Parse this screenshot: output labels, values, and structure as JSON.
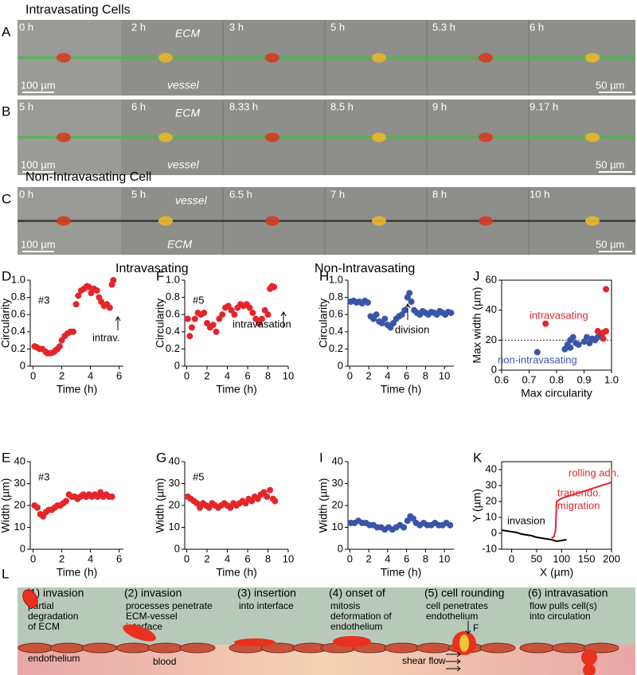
{
  "panels": [
    {
      "letter": "A",
      "heading": "Intravasating Cells",
      "times": [
        "0 h",
        "2 h",
        "3 h",
        "5 h",
        "5.3 h",
        "6 h"
      ],
      "upper": "ECM",
      "lower": "vessel",
      "scale_left": "100 µm",
      "scale_right": "50 µm"
    },
    {
      "letter": "B",
      "times": [
        "5 h",
        "6 h",
        "8.33 h",
        "8.5 h",
        "9 h",
        "9.17 h"
      ],
      "upper": "ECM",
      "lower": "vessel",
      "scale_left": "100 µm",
      "scale_right": "50 µm"
    },
    {
      "letter": "C",
      "heading": "Non-Intravasating Cell",
      "times": [
        "0 h",
        "5 h",
        "6.5 h",
        "7 h",
        "8 h",
        "10 h"
      ],
      "upper": "vessel",
      "lower": "ECM",
      "scale_left": "100 µm",
      "scale_right": "50 µm"
    }
  ],
  "column_headers": [
    "Intravasating",
    "Non-Intravasating"
  ],
  "chart_data": [
    {
      "type": "scatter",
      "label": "D",
      "xlabel": "Time (h)",
      "ylabel": "Circularity",
      "xlim": [
        -0.2,
        6.3
      ],
      "xticks": [
        0,
        2,
        4,
        6
      ],
      "ylim": [
        0,
        1
      ],
      "yticks": [
        0,
        0.2,
        0.4,
        0.6,
        0.8,
        {
          "value": 1,
          "label": "1.0"
        }
      ],
      "annotations": [
        {
          "text": "#3",
          "color": "#000"
        },
        {
          "text": "intrav.",
          "color": "#000"
        }
      ],
      "series": [
        {
          "color": "#e3262b",
          "x": [
            0.1,
            0.25,
            0.45,
            0.65,
            0.85,
            1.0,
            1.2,
            1.4,
            1.55,
            1.7,
            1.85,
            2.0,
            2.2,
            2.4,
            2.6,
            2.8,
            3.0,
            3.15,
            3.35,
            3.55,
            3.75,
            3.9,
            4.05,
            4.25,
            4.45,
            4.6,
            4.75,
            4.95,
            5.15,
            5.35,
            5.5,
            5.6
          ],
          "values": [
            0.23,
            0.22,
            0.2,
            0.2,
            0.17,
            0.15,
            0.15,
            0.16,
            0.18,
            0.2,
            0.23,
            0.3,
            0.35,
            0.38,
            0.4,
            0.4,
            0.72,
            0.82,
            0.88,
            0.9,
            0.93,
            0.92,
            0.85,
            0.9,
            0.88,
            0.8,
            0.75,
            0.7,
            0.72,
            0.68,
            0.95,
            1
          ]
        }
      ]
    },
    {
      "type": "scatter",
      "label": "F",
      "xlabel": "Time (h)",
      "ylabel": "Circularity",
      "xlim": [
        -0.2,
        10
      ],
      "xticks": [
        0,
        2,
        4,
        6,
        8,
        10
      ],
      "ylim": [
        0,
        1
      ],
      "yticks": [
        0,
        0.2,
        0.4,
        0.6,
        0.8,
        {
          "value": 1,
          "label": "1.0"
        }
      ],
      "annotations": [
        {
          "text": "#5",
          "color": "#000"
        },
        {
          "text": "intravasation",
          "color": "#000"
        }
      ],
      "series": [
        {
          "color": "#e3262b",
          "x": [
            0.1,
            0.3,
            0.5,
            0.8,
            1.1,
            1.4,
            1.7,
            2.0,
            2.3,
            2.6,
            2.9,
            3.2,
            3.5,
            3.8,
            4.1,
            4.4,
            4.7,
            5.0,
            5.3,
            5.6,
            5.9,
            6.2,
            6.5,
            6.8,
            7.1,
            7.4,
            7.7,
            8.0,
            8.2,
            8.4,
            8.6
          ],
          "values": [
            0.55,
            0.35,
            0.45,
            0.55,
            0.62,
            0.6,
            0.62,
            0.5,
            0.45,
            0.48,
            0.4,
            0.55,
            0.6,
            0.68,
            0.7,
            0.65,
            0.6,
            0.68,
            0.72,
            0.7,
            0.72,
            0.68,
            0.62,
            0.55,
            0.5,
            0.55,
            0.65,
            0.6,
            0.9,
            0.93,
            0.92
          ]
        }
      ]
    },
    {
      "type": "scatter",
      "label": "H",
      "xlabel": "Time (h)",
      "ylabel": "Circularity",
      "xlim": [
        -0.2,
        11
      ],
      "xticks": [
        0,
        2,
        4,
        6,
        8,
        10
      ],
      "ylim": [
        0,
        1
      ],
      "yticks": [
        0,
        0.2,
        0.4,
        0.6,
        0.8,
        {
          "value": 1,
          "label": "1.0"
        }
      ],
      "annotations": [
        {
          "text": "division",
          "color": "#000"
        }
      ],
      "series": [
        {
          "color": "#3a55a8",
          "x": [
            0.1,
            0.4,
            0.7,
            1.0,
            1.3,
            1.6,
            1.9,
            2.2,
            2.5,
            2.8,
            3.1,
            3.4,
            3.7,
            4.0,
            4.3,
            4.6,
            4.9,
            5.2,
            5.5,
            5.8,
            6.1,
            6.3,
            6.5,
            6.8,
            7.1,
            7.4,
            7.7,
            8.0,
            8.3,
            8.6,
            8.9,
            9.2,
            9.5,
            9.8,
            10.1,
            10.4,
            10.7
          ],
          "values": [
            0.75,
            0.76,
            0.74,
            0.75,
            0.73,
            0.76,
            0.74,
            0.58,
            0.55,
            0.6,
            0.52,
            0.5,
            0.55,
            0.48,
            0.45,
            0.5,
            0.55,
            0.58,
            0.6,
            0.65,
            0.8,
            0.85,
            0.75,
            0.65,
            0.62,
            0.6,
            0.64,
            0.62,
            0.6,
            0.63,
            0.62,
            0.6,
            0.64,
            0.62,
            0.6,
            0.63,
            0.62
          ]
        }
      ]
    },
    {
      "type": "scatter",
      "label": "J",
      "xlabel": "Max circularity",
      "ylabel": "Max width (µm)",
      "xlim": [
        0.6,
        1
      ],
      "xticks": [
        0.6,
        0.7,
        0.8,
        0.9,
        {
          "value": 1,
          "label": "1.0"
        }
      ],
      "ylim": [
        0,
        60
      ],
      "yticks": [
        0,
        20,
        40,
        60
      ],
      "reference_line": 20,
      "series": [
        {
          "name": "intravasating",
          "color": "#e3262b",
          "x": [
            0.76,
            0.95,
            0.96,
            0.97,
            0.97,
            0.98,
            0.98
          ],
          "values": [
            31,
            26,
            23,
            21,
            25,
            54,
            26
          ]
        },
        {
          "name": "non-intravasating",
          "color": "#3a55a8",
          "x": [
            0.73,
            0.83,
            0.84,
            0.85,
            0.85,
            0.86,
            0.87,
            0.88,
            0.9,
            0.91,
            0.92,
            0.93,
            0.94,
            0.95
          ],
          "values": [
            12,
            14,
            17,
            20,
            15,
            22,
            18,
            17,
            19,
            22,
            18,
            21,
            20,
            22
          ]
        }
      ]
    },
    {
      "type": "scatter",
      "label": "E",
      "xlabel": "Time (h)",
      "ylabel": "Width (µm)",
      "xlim": [
        -0.2,
        6.3
      ],
      "xticks": [
        0,
        2,
        4,
        6
      ],
      "ylim": [
        0,
        40
      ],
      "yticks": [
        0,
        10,
        20,
        30,
        40
      ],
      "annotations": [
        {
          "text": "#3",
          "color": "#000"
        }
      ],
      "series": [
        {
          "color": "#e3262b",
          "x": [
            0.1,
            0.3,
            0.5,
            0.7,
            0.9,
            1.1,
            1.3,
            1.5,
            1.7,
            1.9,
            2.1,
            2.3,
            2.5,
            2.7,
            2.9,
            3.1,
            3.3,
            3.5,
            3.7,
            3.9,
            4.1,
            4.3,
            4.5,
            4.7,
            4.9,
            5.1,
            5.3,
            5.5
          ],
          "values": [
            20,
            19,
            16,
            15,
            17,
            18,
            18,
            19,
            20,
            20,
            21,
            22,
            25,
            24,
            24,
            23,
            24,
            25,
            24,
            25,
            24,
            25,
            24,
            26,
            24,
            25,
            24,
            24
          ]
        }
      ]
    },
    {
      "type": "scatter",
      "label": "G",
      "xlabel": "Time (h)",
      "ylabel": "Width (µm)",
      "xlim": [
        -0.2,
        10
      ],
      "xticks": [
        0,
        2,
        4,
        6,
        8,
        10
      ],
      "ylim": [
        0,
        40
      ],
      "yticks": [
        0,
        10,
        20,
        30,
        40
      ],
      "annotations": [
        {
          "text": "#5",
          "color": "#000"
        }
      ],
      "series": [
        {
          "color": "#e3262b",
          "x": [
            0.1,
            0.4,
            0.7,
            1.0,
            1.3,
            1.6,
            1.9,
            2.2,
            2.5,
            2.8,
            3.1,
            3.4,
            3.7,
            4.0,
            4.3,
            4.6,
            4.9,
            5.2,
            5.5,
            5.8,
            6.1,
            6.4,
            6.7,
            7.0,
            7.3,
            7.6,
            7.9,
            8.2,
            8.5,
            8.7
          ],
          "values": [
            24,
            23,
            22,
            21,
            19,
            21,
            20,
            19,
            21,
            20,
            19,
            20,
            21,
            20,
            19,
            21,
            20,
            21,
            22,
            21,
            23,
            22,
            24,
            23,
            25,
            26,
            24,
            27,
            23,
            22
          ]
        }
      ]
    },
    {
      "type": "scatter",
      "label": "I",
      "xlabel": "Time (h)",
      "ylabel": "Width (µm)",
      "xlim": [
        -0.2,
        11
      ],
      "xticks": [
        0,
        2,
        4,
        6,
        8,
        10
      ],
      "ylim": [
        0,
        40
      ],
      "yticks": [
        0,
        10,
        20,
        30,
        40
      ],
      "series": [
        {
          "color": "#3a55a8",
          "x": [
            0.1,
            0.5,
            0.9,
            1.3,
            1.7,
            2.1,
            2.5,
            2.9,
            3.3,
            3.7,
            4.1,
            4.5,
            4.9,
            5.3,
            5.7,
            6.1,
            6.4,
            6.7,
            7.0,
            7.4,
            7.8,
            8.2,
            8.6,
            9.0,
            9.4,
            9.8,
            10.2,
            10.6
          ],
          "values": [
            12,
            12,
            13,
            12,
            12,
            11,
            11,
            10,
            10,
            9,
            10,
            9,
            10,
            11,
            10,
            13,
            15,
            14,
            12,
            11,
            12,
            11,
            11,
            12,
            11,
            11,
            12,
            11
          ]
        }
      ]
    },
    {
      "type": "line",
      "label": "K",
      "xlabel": "X (µm)",
      "ylabel": "Y (µm)",
      "xlim": [
        -20,
        200
      ],
      "xticks": [
        0,
        50,
        100,
        150,
        200
      ],
      "ylim": [
        -10,
        45
      ],
      "yticks": [
        -10,
        0,
        10,
        20,
        30,
        40
      ],
      "annotations": [
        {
          "text": "invasion",
          "color": "#000"
        },
        {
          "text": "rolling adh.",
          "color": "#e3262b"
        },
        {
          "text": "tranendo.",
          "color": "#e3262b"
        },
        {
          "text": "migration",
          "color": "#e3262b"
        }
      ],
      "series": [
        {
          "color": "#000",
          "x": [
            -20,
            -10,
            0,
            10,
            20,
            30,
            40,
            50,
            60,
            70,
            80,
            90,
            100,
            110
          ],
          "values": [
            2,
            1.5,
            1,
            0.5,
            -0.5,
            -1,
            -1.5,
            -2.5,
            -3,
            -3.5,
            -4,
            -5,
            -4.5,
            -4
          ]
        },
        {
          "color": "#e3262b",
          "x": [
            80,
            85,
            88,
            90,
            100,
            150,
            200
          ],
          "values": [
            -3,
            -2,
            2,
            20,
            22,
            27,
            32
          ]
        }
      ]
    }
  ],
  "schematic": {
    "letter": "L",
    "steps": [
      {
        "title": "(1) invasion",
        "text": [
          "partial",
          "degradation",
          "of ECM"
        ]
      },
      {
        "title": "(2) invasion",
        "text": [
          "processes penetrate",
          "ECM-vessel",
          "interface"
        ]
      },
      {
        "title": "(3) insertion",
        "text": [
          "into interface"
        ]
      },
      {
        "title": "(4) onset of",
        "text": [
          "mitosis",
          "deformation of",
          "endothelium"
        ]
      },
      {
        "title": "(5) cell rounding",
        "text": [
          "cell penetrates",
          "endothelium"
        ]
      },
      {
        "title": "(6) intravasation",
        "text": [
          "flow pulls cell(s)",
          "into circulation"
        ]
      }
    ],
    "endothelium": "endothelium",
    "blood": "blood",
    "shear_flow": "shear flow",
    "force": "F"
  }
}
